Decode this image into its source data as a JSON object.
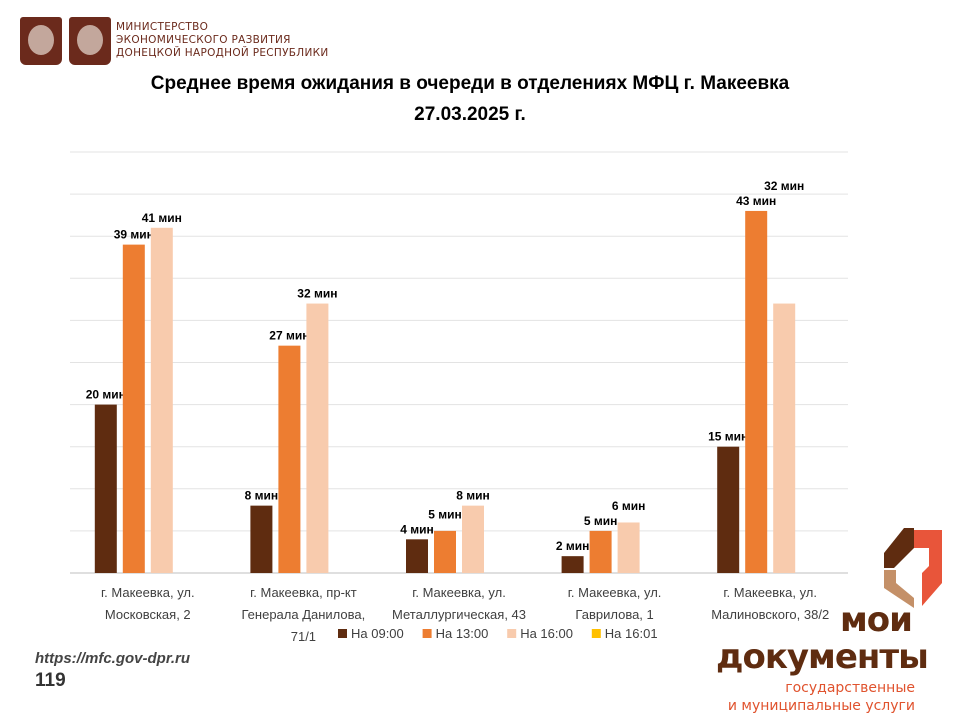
{
  "header": {
    "ministry_lines": [
      "МИНИСТЕРСТВО",
      "ЭКОНОМИЧЕСКОГО РАЗВИТИЯ",
      "ДОНЕЦКОЙ НАРОДНОЙ РЕСПУБЛИКИ"
    ]
  },
  "footer": {
    "url": "https://mfc.gov-dpr.ru",
    "page": "119",
    "logo_word1": "мои",
    "logo_word2": "документы",
    "logo_sub1": "государственные",
    "logo_sub2": "и муниципальные услуги"
  },
  "colors": {
    "brand": "#6b2a1c",
    "accent": "#e0532e"
  },
  "chart_data": {
    "type": "bar",
    "title": "Среднее время ожидания в очереди в отделениях МФЦ г. Макеевка",
    "subtitle": "27.03.2025 г.",
    "categories": [
      [
        "г. Макеевка, ул.",
        "Московская, 2"
      ],
      [
        "г. Макеевка, пр-кт",
        "Генерала Данилова,",
        "71/1"
      ],
      [
        "г. Макеевка, ул.",
        "Металлургическая, 43"
      ],
      [
        "г. Макеевка, ул.",
        "Гаврилова, 1"
      ],
      [
        "г. Макеевка, ул.",
        "Малиновского, 38/2"
      ]
    ],
    "series": [
      {
        "name": "На 09:00",
        "color": "#5f2c10",
        "values": [
          20,
          8,
          4,
          2,
          15
        ]
      },
      {
        "name": "На 13:00",
        "color": "#ed7d31",
        "values": [
          39,
          27,
          5,
          5,
          43
        ]
      },
      {
        "name": "На 16:00",
        "color": "#f8cbad",
        "values": [
          41,
          32,
          8,
          6,
          32
        ]
      },
      {
        "name": "На 16:01",
        "color": "#ffc000",
        "values": [
          0,
          0,
          0,
          0,
          0
        ]
      }
    ],
    "data_label_suffix": " мин",
    "ylim": [
      0,
      50
    ],
    "grid": true,
    "legend": "bottom"
  }
}
